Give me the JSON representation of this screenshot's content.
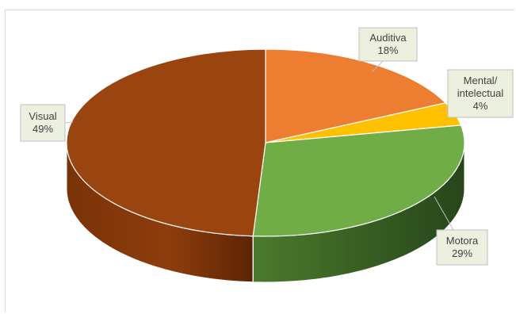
{
  "chart_data": {
    "type": "pie",
    "style": "3d",
    "title": "",
    "categories": [
      "Auditiva",
      "Mental/ intelectual",
      "Motora",
      "Visual"
    ],
    "values": [
      18,
      4,
      29,
      49
    ],
    "unit": "%",
    "colors": [
      "#ed7d31",
      "#ffc000",
      "#70ad47",
      "#9a4410"
    ],
    "data_labels": [
      {
        "lines": [
          "Auditiva",
          "18%"
        ]
      },
      {
        "lines": [
          "Mental/",
          "intelectual",
          "4%"
        ]
      },
      {
        "lines": [
          "Motora",
          "29%"
        ]
      },
      {
        "lines": [
          "Visual",
          "49%"
        ]
      }
    ],
    "legend": "none"
  }
}
